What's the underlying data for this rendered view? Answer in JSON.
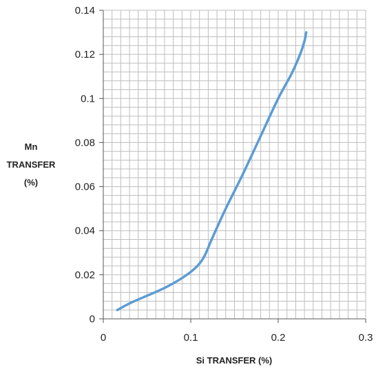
{
  "chart_data": {
    "type": "line",
    "title": "",
    "xlabel": "Si TRANSFER (%)",
    "ylabel_lines": [
      "Mn",
      "TRANSFER",
      "(%)"
    ],
    "xlim": [
      0,
      0.3
    ],
    "ylim": [
      0,
      0.14
    ],
    "x_ticks": [
      0,
      0.1,
      0.2,
      0.3
    ],
    "x_tick_labels": [
      "0",
      "0.1",
      "0.2",
      "0.3"
    ],
    "y_ticks": [
      0,
      0.02,
      0.04,
      0.06,
      0.08,
      0.1,
      0.12,
      0.14
    ],
    "y_tick_labels": [
      "0",
      "0.02",
      "0.04",
      "0.06",
      "0.08",
      "0.1",
      "0.12",
      "0.14"
    ],
    "grid": true,
    "grid_minor_x_step": 0.01,
    "grid_minor_y_step": 0.004,
    "series": [
      {
        "color": "#5b9bd5",
        "x": [
          0.016,
          0.03,
          0.05,
          0.07,
          0.09,
          0.105,
          0.115,
          0.125,
          0.14,
          0.16,
          0.18,
          0.2,
          0.215,
          0.225,
          0.23,
          0.232
        ],
        "y": [
          0.004,
          0.007,
          0.0105,
          0.014,
          0.0185,
          0.023,
          0.028,
          0.037,
          0.05,
          0.066,
          0.083,
          0.1,
          0.111,
          0.12,
          0.126,
          0.13
        ]
      }
    ]
  }
}
